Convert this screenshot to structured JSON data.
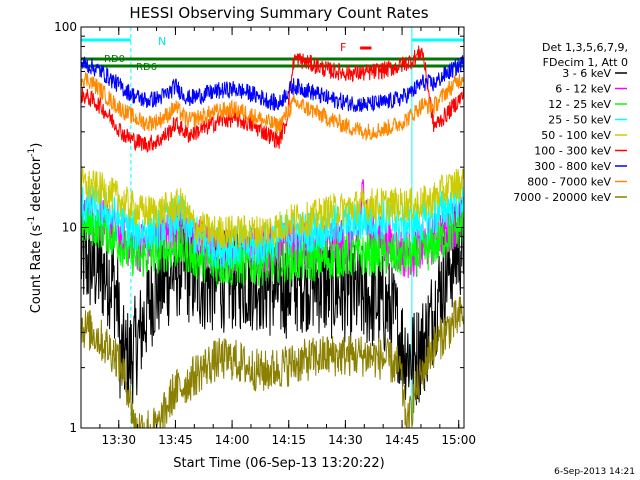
{
  "chart_data": {
    "type": "line",
    "title": "HESSI Observing Summary Count Rates",
    "xlabel": "Start Time (06-Sep-13 13:20:22)",
    "ylabel_main": "Count Rate (s",
    "ylabel_sup1": "-1",
    "ylabel_mid": " detector",
    "ylabel_sup2": "-1",
    "ylabel_end": ")",
    "y_scale": "log",
    "ylim": [
      1,
      100
    ],
    "xlim_minutes": [
      -0.4,
      101
    ],
    "x_ticks": [
      {
        "label": "13:30",
        "minutes": 9.6
      },
      {
        "label": "13:45",
        "minutes": 24.6
      },
      {
        "label": "14:00",
        "minutes": 39.6
      },
      {
        "label": "14:15",
        "minutes": 54.6
      },
      {
        "label": "14:30",
        "minutes": 69.6
      },
      {
        "label": "14:45",
        "minutes": 84.6
      },
      {
        "label": "15:00",
        "minutes": 99.6
      }
    ],
    "y_ticks": [
      {
        "label": "1",
        "value": 1
      },
      {
        "label": "10",
        "value": 10
      },
      {
        "label": "100",
        "value": 100
      }
    ],
    "legend_position": "right",
    "legend": {
      "header": [
        "Det 1,3,5,6,7,9,",
        "FDecim 1, Att 0"
      ],
      "entries": [
        {
          "label": "3 - 6 keV",
          "color": "#000000"
        },
        {
          "label": "6 - 12 keV",
          "color": "#ff00ff"
        },
        {
          "label": "12 - 25 keV",
          "color": "#00ff00"
        },
        {
          "label": "25 - 50 keV",
          "color": "#00ffff"
        },
        {
          "label": "50 - 100 keV",
          "color": "#cccc00"
        },
        {
          "label": "100 - 300 keV",
          "color": "#ff0000"
        },
        {
          "label": "300 - 800 keV",
          "color": "#0000ff"
        },
        {
          "label": "800 - 7000 keV",
          "color": "#ff8800"
        },
        {
          "label": "7000 - 20000 keV",
          "color": "#8b8000"
        }
      ]
    },
    "annotations": {
      "night_label": "N",
      "flare_label": "F",
      "rd_label": "RD0",
      "rd_label2": "RD6",
      "footer_date": "6-Sep-2013 14:21"
    },
    "flags": {
      "night_intervals": [
        [
          -0.4,
          12.8
        ],
        [
          87.2,
          101
        ]
      ],
      "flare_interval": [
        73.5,
        76.5
      ],
      "rd_interval": [
        -0.4,
        101
      ]
    },
    "series": [
      {
        "name": "3 - 6 keV",
        "color": "#000000",
        "noise": 0.6,
        "x": [
          -0.4,
          8,
          9.5,
          10,
          12.5,
          15,
          18,
          22,
          26,
          30,
          34,
          40,
          46,
          52,
          56,
          60,
          65,
          70,
          75,
          78,
          82,
          85,
          88,
          91,
          94,
          97,
          101
        ],
        "y": [
          7,
          5.5,
          4,
          2.3,
          2.2,
          2.8,
          4.5,
          5.5,
          6.5,
          5.5,
          5.3,
          5.5,
          5.5,
          4.8,
          5.3,
          5.5,
          5.0,
          4.8,
          4.5,
          4.3,
          3.8,
          2.5,
          2.2,
          2.8,
          4.5,
          6.5,
          8.5
        ]
      },
      {
        "name": "6 - 12 keV",
        "color": "#ff00ff",
        "noise": 0.3,
        "x": [
          -0.4,
          5,
          9.5,
          12,
          15,
          20,
          26,
          30,
          35,
          40,
          46,
          52,
          56,
          60,
          65,
          70,
          73,
          74.5,
          76,
          80,
          85,
          88,
          92,
          96,
          101
        ],
        "y": [
          12,
          11,
          9.5,
          8.5,
          8,
          9,
          10,
          8.5,
          7.5,
          7.5,
          7.8,
          8.2,
          8,
          8,
          8.2,
          8.4,
          9,
          16,
          9,
          8.5,
          7.5,
          7.5,
          8.5,
          10,
          11
        ]
      },
      {
        "name": "12 - 25 keV",
        "color": "#00ff00",
        "noise": 0.25,
        "x": [
          -0.4,
          5,
          9.5,
          12,
          15,
          20,
          26,
          30,
          35,
          40,
          46,
          52,
          56,
          60,
          65,
          70,
          75,
          80,
          85,
          88,
          92,
          96,
          101
        ],
        "y": [
          10.5,
          10,
          8.5,
          7.5,
          7,
          7.5,
          8,
          7.0,
          6.5,
          6.5,
          6.5,
          6.8,
          6.8,
          6.8,
          7,
          7.2,
          7.3,
          7.3,
          7.2,
          7.2,
          7.8,
          9,
          10.5
        ]
      },
      {
        "name": "25 - 50 keV",
        "color": "#00ffff",
        "noise": 0.25,
        "x": [
          -0.4,
          5,
          9.5,
          12,
          15,
          20,
          26,
          30,
          35,
          40,
          46,
          52,
          56,
          60,
          65,
          70,
          75,
          80,
          85,
          88,
          92,
          96,
          101
        ],
        "y": [
          13,
          12.5,
          11,
          10,
          9.5,
          10,
          11.5,
          9,
          8,
          8,
          8,
          9,
          9.5,
          9.5,
          10,
          10.5,
          11,
          11,
          10.5,
          10.5,
          11,
          12.5,
          14
        ]
      },
      {
        "name": "50 - 100 keV",
        "color": "#cccc00",
        "noise": 0.2,
        "x": [
          -0.4,
          5,
          9.5,
          12,
          15,
          20,
          26,
          30,
          35,
          40,
          46,
          52,
          56,
          60,
          65,
          70,
          75,
          80,
          85,
          88,
          92,
          96,
          101
        ],
        "y": [
          16.5,
          15.5,
          14,
          13,
          12,
          12,
          13,
          10,
          9.5,
          9.5,
          9.5,
          10,
          11,
          11,
          12,
          12.5,
          13,
          13,
          13,
          13,
          13.5,
          15.5,
          17
        ]
      },
      {
        "name": "100 - 300 keV",
        "color": "#ff0000",
        "noise": 0.1,
        "x": [
          -0.4,
          2,
          5,
          8,
          11,
          14,
          17,
          20,
          23,
          24.5,
          28,
          32,
          36,
          40,
          44,
          48,
          52,
          54,
          56,
          60,
          65,
          70,
          75,
          80,
          84,
          87,
          90,
          93,
          96,
          99,
          101
        ],
        "y": [
          46,
          44,
          40,
          34,
          29,
          27,
          26,
          27,
          30,
          33,
          29,
          31,
          34,
          35,
          33,
          30,
          27,
          34,
          70,
          66,
          61,
          59,
          59,
          61,
          64,
          68,
          76,
          32,
          36,
          42,
          46
        ]
      },
      {
        "name": "300 - 800 keV",
        "color": "#0000ff",
        "noise": 0.1,
        "x": [
          -0.4,
          2,
          5,
          8,
          11,
          14,
          17,
          20,
          23,
          24.5,
          28,
          32,
          36,
          40,
          44,
          48,
          52,
          54,
          56,
          60,
          65,
          70,
          75,
          80,
          84,
          87,
          90,
          93,
          96,
          99,
          101
        ],
        "y": [
          66,
          64,
          60,
          54,
          49,
          45,
          43,
          44,
          47,
          51,
          44,
          46,
          48,
          49,
          47,
          44,
          41,
          47,
          51,
          48,
          44,
          42,
          41,
          42,
          44,
          47,
          53,
          52,
          58,
          63,
          67
        ]
      },
      {
        "name": "800 - 7000 keV",
        "color": "#ff8800",
        "noise": 0.1,
        "x": [
          -0.4,
          2,
          5,
          8,
          11,
          14,
          17,
          20,
          23,
          24.5,
          28,
          32,
          36,
          40,
          44,
          48,
          52,
          54,
          56,
          60,
          65,
          70,
          75,
          80,
          84,
          87,
          90,
          93,
          96,
          99,
          101
        ],
        "y": [
          56,
          54,
          48,
          42,
          38,
          35,
          33,
          34,
          37,
          40,
          34,
          36,
          38,
          39,
          37,
          34,
          32,
          37,
          42,
          39,
          35,
          32,
          30,
          31,
          33,
          36,
          41,
          40,
          47,
          53,
          57
        ]
      },
      {
        "name": "7000 - 20000 keV",
        "color": "#8b8000",
        "noise": 0.25,
        "x": [
          -0.4,
          3,
          6,
          9,
          12,
          14,
          17,
          20,
          24,
          28,
          32,
          36,
          40,
          44,
          48,
          52,
          56,
          60,
          65,
          70,
          75,
          80,
          84,
          86,
          88,
          92,
          96,
          101
        ],
        "y": [
          3.2,
          3.0,
          2.6,
          2.3,
          1.6,
          1.0,
          1.0,
          1.0,
          1.5,
          1.7,
          2.0,
          2.2,
          2.2,
          2.0,
          1.9,
          2.0,
          2.1,
          2.2,
          2.3,
          2.3,
          2.3,
          2.2,
          2.0,
          1.0,
          1.5,
          2.4,
          3.0,
          3.8
        ]
      }
    ]
  }
}
